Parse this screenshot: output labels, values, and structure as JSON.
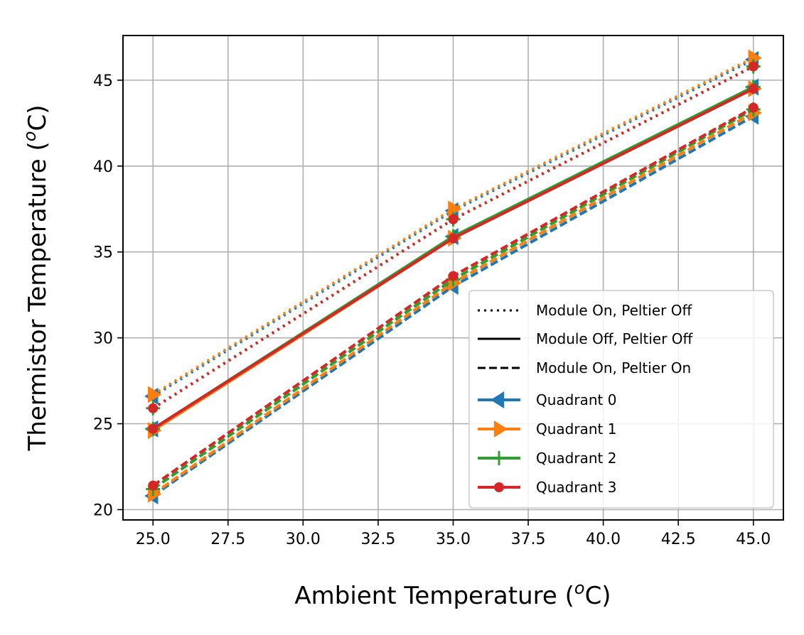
{
  "chart_data": {
    "type": "line",
    "xlabel": "Ambient Temperature (",
    "xlabel_sup": "o",
    "xlabel_unit": "C)",
    "ylabel": "Thermistor Temperature (",
    "ylabel_sup": "o",
    "ylabel_unit": "C)",
    "xlim": [
      24.0,
      46.0
    ],
    "ylim": [
      19.4,
      47.6
    ],
    "xticks": [
      25.0,
      27.5,
      30.0,
      32.5,
      35.0,
      37.5,
      40.0,
      42.5,
      45.0
    ],
    "xtick_labels": [
      "25.0",
      "27.5",
      "30.0",
      "32.5",
      "35.0",
      "37.5",
      "40.0",
      "42.5",
      "45.0"
    ],
    "yticks": [
      20,
      25,
      30,
      35,
      40,
      45
    ],
    "ytick_labels": [
      "20",
      "25",
      "30",
      "35",
      "40",
      "45"
    ],
    "grid": true,
    "legend_position": "lower-right",
    "conditions": [
      {
        "key": "on_off",
        "label": "Module On, Peltier Off",
        "linestyle": "dotted"
      },
      {
        "key": "off_off",
        "label": "Module Off, Peltier Off",
        "linestyle": "solid"
      },
      {
        "key": "on_on",
        "label": "Module On, Peltier On",
        "linestyle": "dashed"
      }
    ],
    "x": [
      25,
      35,
      45
    ],
    "series": [
      {
        "name": "Quadrant 0",
        "color": "#1f77b4",
        "marker": "triangle-left",
        "values": {
          "on_off": [
            26.6,
            37.4,
            46.2
          ],
          "off_off": [
            24.7,
            35.9,
            44.6
          ],
          "on_on": [
            20.8,
            33.0,
            42.9
          ]
        }
      },
      {
        "name": "Quadrant 1",
        "color": "#ff7f0e",
        "marker": "triangle-right",
        "values": {
          "on_off": [
            26.7,
            37.5,
            46.3
          ],
          "off_off": [
            24.6,
            35.8,
            44.5
          ],
          "on_on": [
            20.9,
            33.2,
            43.1
          ]
        }
      },
      {
        "name": "Quadrant 2",
        "color": "#2ca02c",
        "marker": "plus",
        "values": {
          "on_off": [
            25.9,
            36.9,
            45.8
          ],
          "off_off": [
            24.7,
            35.9,
            44.6
          ],
          "on_on": [
            21.2,
            33.4,
            43.3
          ]
        }
      },
      {
        "name": "Quadrant 3",
        "color": "#d62728",
        "marker": "circle",
        "values": {
          "on_off": [
            25.9,
            36.9,
            45.8
          ],
          "off_off": [
            24.7,
            35.8,
            44.5
          ],
          "on_on": [
            21.4,
            33.6,
            43.4
          ]
        }
      }
    ]
  }
}
